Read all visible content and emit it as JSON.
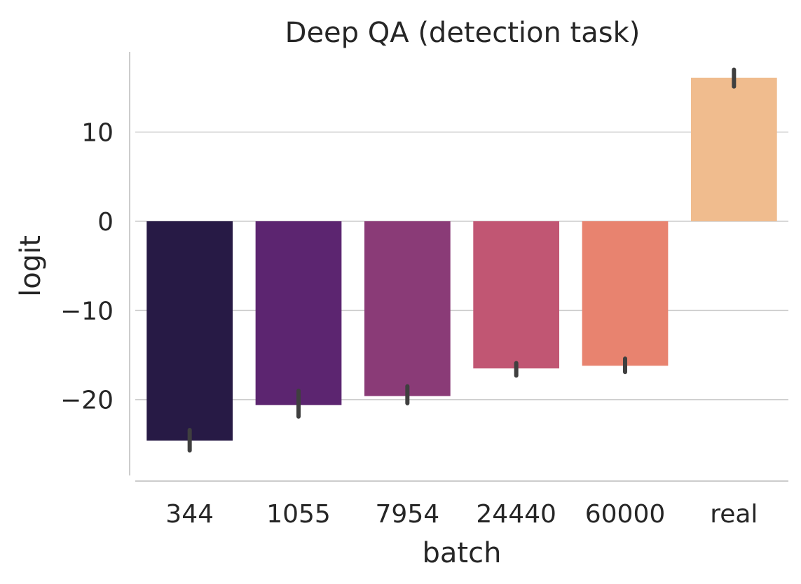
{
  "chart_data": {
    "type": "bar",
    "title": "Deep QA (detection task)",
    "xlabel": "batch",
    "ylabel": "logit",
    "categories": [
      "344",
      "1055",
      "7954",
      "24440",
      "60000",
      "real"
    ],
    "values": [
      -24.6,
      -20.6,
      -19.6,
      -16.5,
      -16.2,
      16.1
    ],
    "error_low": [
      -25.7,
      -21.9,
      -20.4,
      -17.3,
      -16.9,
      15.1
    ],
    "error_high": [
      -23.4,
      -19.0,
      -18.5,
      -15.9,
      -15.4,
      17.0
    ],
    "colors": [
      "#271a45",
      "#5c2570",
      "#8a3b77",
      "#c15673",
      "#e8836f",
      "#f0bc8e"
    ],
    "yticks": [
      -20,
      -10,
      0,
      10
    ],
    "ytick_labels": [
      "−20",
      "−10",
      "0",
      "10"
    ],
    "ylim": [
      -28.5,
      19
    ],
    "grid": "horizontal"
  }
}
